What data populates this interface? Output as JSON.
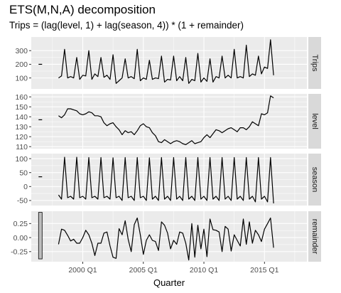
{
  "chart_data": {
    "type": "line",
    "title": "ETS(M,N,A) decomposition",
    "subtitle": "Trips = (lag(level, 1) + lag(season, 4)) * (1 + remainder)",
    "xlabel": "Quarter",
    "x_ticks": [
      "2000 Q1",
      "2005 Q1",
      "2010 Q1",
      "2015 Q1"
    ],
    "x_start_year": 1998,
    "x_start_quarter": 1,
    "xlim": [
      1995.75,
      2018.5
    ],
    "panels": [
      {
        "name": "Trips",
        "yticks": [
          100,
          200,
          300
        ],
        "tick_labels": [
          "100",
          "200",
          "300"
        ],
        "ylim": [
          20,
          400
        ],
        "scale_bar_value": 200,
        "values": [
          100,
          115,
          310,
          100,
          110,
          100,
          250,
          90,
          120,
          115,
          300,
          90,
          130,
          110,
          250,
          105,
          120,
          90,
          270,
          60,
          80,
          100,
          240,
          100,
          110,
          95,
          310,
          80,
          100,
          90,
          230,
          90,
          100,
          95,
          260,
          70,
          90,
          85,
          260,
          80,
          110,
          80,
          250,
          60,
          90,
          80,
          280,
          70,
          100,
          75,
          240,
          70,
          110,
          100,
          260,
          100,
          120,
          100,
          310,
          100,
          110,
          100,
          340,
          110,
          130,
          120,
          260,
          130,
          180,
          170,
          380,
          120
        ]
      },
      {
        "name": "level",
        "yticks": [
          110,
          120,
          130,
          140,
          150,
          160
        ],
        "tick_labels": [
          "110",
          "120",
          "130",
          "140",
          "150",
          "160"
        ],
        "ylim": [
          108,
          163
        ],
        "scale_bar_value": 137,
        "values": [
          141,
          139,
          142,
          148,
          148,
          147,
          146,
          143,
          142,
          143,
          145,
          144,
          141,
          141,
          140,
          134,
          131,
          133,
          134,
          130,
          127,
          122,
          126,
          124,
          125,
          122,
          126,
          131,
          133,
          130,
          129,
          124,
          121,
          115,
          114,
          117,
          115,
          113,
          115,
          116,
          115,
          113,
          112,
          114,
          116,
          113,
          114,
          115,
          119,
          122,
          119,
          123,
          127,
          126,
          124,
          126,
          128,
          129,
          127,
          125,
          129,
          129,
          127,
          130,
          135,
          133,
          131,
          143,
          142,
          144,
          161,
          159
        ]
      },
      {
        "name": "season",
        "yticks": [
          -50,
          0,
          50,
          100
        ],
        "tick_labels": [
          "-50",
          "0",
          "50",
          "100"
        ],
        "ylim": [
          -68,
          118
        ],
        "scale_bar_value": 35,
        "values": [
          -30,
          -45,
          105,
          -40,
          -35,
          -45,
          105,
          -40,
          -35,
          -45,
          104,
          -40,
          -35,
          -45,
          104,
          -40,
          -35,
          -45,
          103,
          -40,
          -35,
          -50,
          104,
          -40,
          -35,
          -50,
          104,
          -40,
          -35,
          -50,
          103,
          -45,
          -35,
          -50,
          104,
          -45,
          -35,
          -50,
          104,
          -45,
          -35,
          -50,
          104,
          -45,
          -35,
          -50,
          104,
          -45,
          -35,
          -50,
          104,
          -45,
          -35,
          -50,
          104,
          -45,
          -35,
          -50,
          104,
          -45,
          -35,
          -50,
          104,
          -45,
          -35,
          -55,
          104,
          -45,
          -35,
          -55,
          104,
          -60
        ]
      },
      {
        "name": "remainder",
        "yticks": [
          -0.25,
          0,
          0.25
        ],
        "tick_labels": [
          "-0.25",
          "0.00",
          "0.25"
        ],
        "ylim": [
          -0.43,
          0.47
        ],
        "scale_bar_value": 0.45,
        "values": [
          -0.12,
          0.15,
          0.13,
          0.04,
          -0.06,
          -0.03,
          -0.1,
          -0.1,
          0.0,
          0.13,
          0.05,
          -0.1,
          -0.32,
          -0.1,
          -0.1,
          0.08,
          0.1,
          -0.15,
          -0.35,
          -0.37,
          0.16,
          0.05,
          0.3,
          -0.03,
          -0.25,
          0.23,
          0.35,
          0.05,
          -0.3,
          -0.05,
          0.05,
          -0.05,
          -0.07,
          -0.23,
          0.28,
          0.22,
          0.08,
          -0.2,
          -0.05,
          -0.12,
          0.1,
          0.08,
          -0.1,
          -0.4,
          0.25,
          -0.35,
          0.22,
          -0.2,
          0.15,
          -0.34,
          0.33,
          0.14,
          0.13,
          0.1,
          -0.25,
          0.2,
          0.15,
          -0.24,
          0.05,
          -0.05,
          -0.15,
          0.33,
          -0.12,
          0.28,
          -0.1,
          0.13,
          0.05,
          -0.07,
          0.15,
          0.25,
          0.35,
          -0.18
        ]
      }
    ]
  },
  "colors": {
    "panel_background": "#ebebeb",
    "grid_major": "#ffffff",
    "strip_background": "#d9d9d9",
    "line": "#000000",
    "scale_bar_fill": "#bebebe"
  }
}
